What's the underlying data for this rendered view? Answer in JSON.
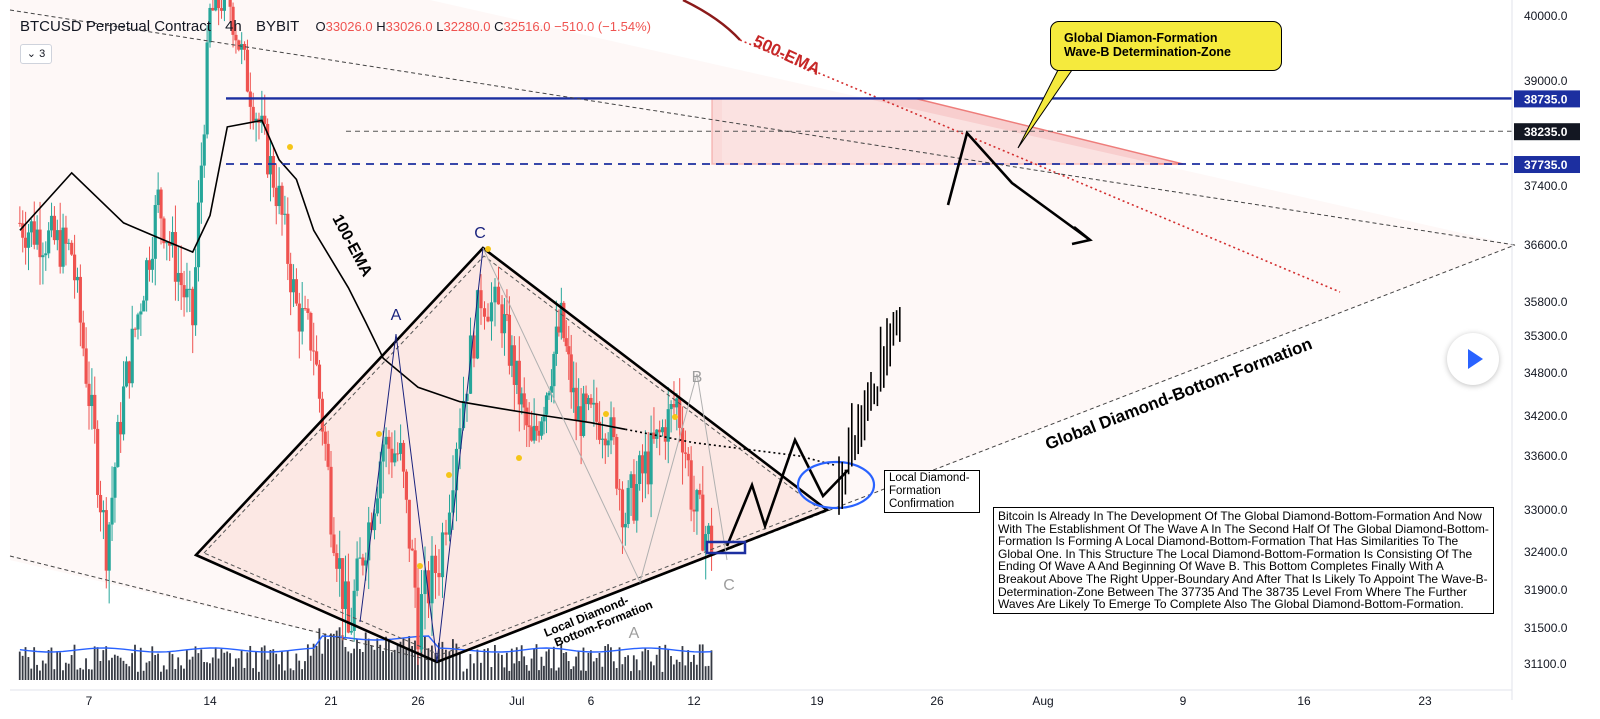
{
  "header": {
    "symbol": "BTCUSD Perpetual Contract",
    "timeframe": "4h",
    "exchange": "BYBIT",
    "ohlc": {
      "o_label": "O",
      "o": "33026.0",
      "h_label": "H",
      "h": "33026.0",
      "l_label": "L",
      "l": "32280.0",
      "c_label": "C",
      "c": "32516.0",
      "change": "−510.0 (−1.54%)"
    },
    "indicator_toggle": "3"
  },
  "chart_data": {
    "type": "candlestick",
    "title": "BTCUSD Perpetual Contract",
    "y_scale": "linear",
    "y_axis_ticks": [
      40000.0,
      39000.0,
      37400.0,
      36600.0,
      35800.0,
      35300.0,
      34800.0,
      34200.0,
      33600.0,
      33000.0,
      32400.0,
      31900.0,
      31500.0,
      31100.0
    ],
    "y_axis_ticks_display": [
      "40000.0",
      "39000.0",
      "37400.0",
      "36600.0",
      "35800.0",
      "35300.0",
      "34800.0",
      "34200.0",
      "33600.0",
      "33000.0",
      "32400.0",
      "31900.0",
      "31500.0",
      "31100.0"
    ],
    "x_axis_ticks": [
      "7",
      "14",
      "21",
      "26",
      "Jul",
      "6",
      "12",
      "19",
      "26",
      "Aug",
      "9",
      "16",
      "23"
    ],
    "price_labels": [
      {
        "value": "38735.0",
        "style": "solid",
        "color": "#1c2fa0"
      },
      {
        "value": "38235.0",
        "style": "dashed",
        "color": "#131722"
      },
      {
        "value": "37735.0",
        "style": "dashed",
        "color": "#1c2fa0"
      }
    ],
    "candles_approx": {
      "start_date": "Jun 3",
      "interval": "4h",
      "close_path_anchors": [
        {
          "date": "Jun 3",
          "price": 36900
        },
        {
          "date": "Jun 6",
          "price": 36500
        },
        {
          "date": "Jun 8",
          "price": 32500
        },
        {
          "date": "Jun 9",
          "price": 34500
        },
        {
          "date": "Jun 11",
          "price": 37200
        },
        {
          "date": "Jun 13",
          "price": 35500
        },
        {
          "date": "Jun 14",
          "price": 40000
        },
        {
          "date": "Jun 15",
          "price": 40400
        },
        {
          "date": "Jun 16",
          "price": 39200
        },
        {
          "date": "Jun 18",
          "price": 37200
        },
        {
          "date": "Jun 19",
          "price": 35700
        },
        {
          "date": "Jun 20",
          "price": 35200
        },
        {
          "date": "Jun 21",
          "price": 33000
        },
        {
          "date": "Jun 22",
          "price": 31400
        },
        {
          "date": "Jun 24",
          "price": 33800
        },
        {
          "date": "Jun 25",
          "price": 33600
        },
        {
          "date": "Jun 26",
          "price": 31600
        },
        {
          "date": "Jun 27",
          "price": 32300
        },
        {
          "date": "Jun 28",
          "price": 34200
        },
        {
          "date": "Jun 29",
          "price": 35900
        },
        {
          "date": "Jun 30",
          "price": 35600
        },
        {
          "date": "Jul 2",
          "price": 33700
        },
        {
          "date": "Jul 4",
          "price": 35500
        },
        {
          "date": "Jul 5",
          "price": 34200
        },
        {
          "date": "Jul 7",
          "price": 34100
        },
        {
          "date": "Jul 8",
          "price": 32900
        },
        {
          "date": "Jul 10",
          "price": 33900
        },
        {
          "date": "Jul 11",
          "price": 34400
        },
        {
          "date": "Jul 12",
          "price": 33000
        },
        {
          "date": "Jul 13",
          "price": 32516
        }
      ]
    },
    "series": [
      {
        "name": "100-EMA",
        "color": "#000000"
      },
      {
        "name": "500-EMA",
        "color": "#b71c1c"
      }
    ],
    "annotations": {
      "ema100_label": "100-EMA",
      "ema500_label": "500-EMA",
      "wave_labels": [
        {
          "text": "A",
          "color": "#1a237e"
        },
        {
          "text": "C",
          "color": "#1a237e"
        },
        {
          "text": "B",
          "color": "#9e9e9e"
        },
        {
          "text": "C",
          "color": "#9e9e9e"
        },
        {
          "text": "A",
          "color": "#9e9e9e"
        }
      ],
      "local_formation_label": "Local Diamond-Bottom-Formation",
      "local_formation_label_line1": "Local Diamond-",
      "local_formation_label_line2": "Bottom-Formation",
      "global_formation_label": "Global Diamond-Bottom-Formation",
      "callout_line1": "Global Diamon-Formation",
      "callout_line2": "Wave-B Determination-Zone",
      "confirmation_line1": "Local Diamond-",
      "confirmation_line2": "Formation",
      "confirmation_line3": "Confirmation",
      "description": "Bitcoin Is Already In The Development Of The Global Diamond-Bottom-Formation And Now With The Establishment Of The Wave A In The Second Half Of The Global Diamond-Bottom-Formation Is Forming A Local Diamond-Bottom-Formation That Has Similarities To The Global One. In This Structure The Local Diamond-Bottom-Formation Is Consisting Of The Ending Of Wave A And Beginning Of Wave B. This Bottom Completes Finally With A Breakout Above The Right Upper-Boundary And After That Is Likely To Appoint The Wave-B-Determination-Zone Between The 37735 And The 38735 Level From Where The Further Waves Are Likely To Emerge To Complete Also The Global Diamond-Bottom-Formation."
    },
    "colors": {
      "up_candle": "#26a69a",
      "down_candle": "#ef5350",
      "volume_bar": "#131722",
      "volume_ma": "#2962ff",
      "zone_fill": "#f5b5b5",
      "zone_border": "#e53935",
      "level_line": "#1c2fa0",
      "diamond_fill": "#fbe3de"
    }
  }
}
